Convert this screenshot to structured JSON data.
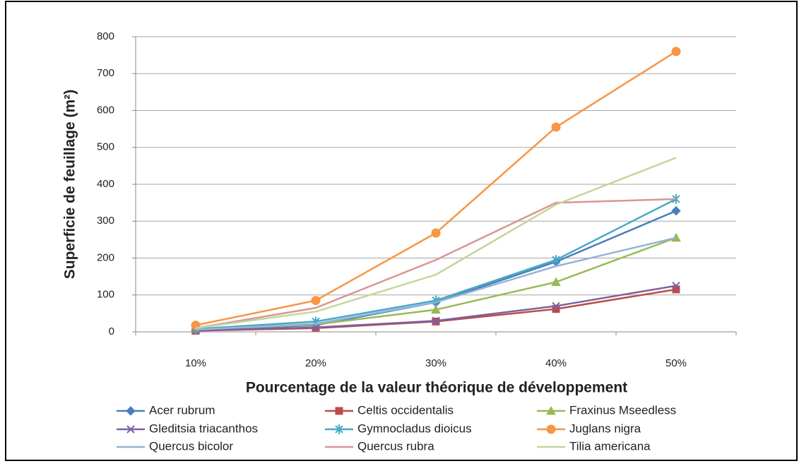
{
  "chart_data": {
    "type": "line",
    "x_label": "Pourcentage de la valeur théorique de développement",
    "y_label": "Superficie de feuillage (m²)",
    "categories": [
      "10%",
      "20%",
      "30%",
      "40%",
      "50%"
    ],
    "ylim": [
      0,
      800
    ],
    "yticks": [
      0,
      100,
      200,
      300,
      400,
      500,
      600,
      700,
      800
    ],
    "grid": true,
    "legend": "bottom",
    "series": [
      {
        "name": "Acer rubrum",
        "color": "#4a7ebb",
        "marker": "diamond",
        "values": [
          5,
          18,
          80,
          190,
          328
        ]
      },
      {
        "name": "Celtis occidentalis",
        "color": "#be4b48",
        "marker": "square",
        "values": [
          3,
          10,
          28,
          62,
          115
        ]
      },
      {
        "name": "Fraxinus Mseedless",
        "color": "#98b954",
        "marker": "triangle",
        "values": [
          6,
          20,
          60,
          135,
          255
        ]
      },
      {
        "name": "Gleditsia triacanthos",
        "color": "#7d60a0",
        "marker": "x",
        "values": [
          4,
          12,
          30,
          70,
          125
        ]
      },
      {
        "name": "Gymnocladus dioicus",
        "color": "#46aac5",
        "marker": "star",
        "values": [
          8,
          28,
          85,
          195,
          360
        ]
      },
      {
        "name": "Juglans nigra",
        "color": "#f79646",
        "marker": "circle",
        "values": [
          18,
          85,
          268,
          555,
          760
        ]
      },
      {
        "name": "Quercus bicolor",
        "color": "#95b3d7",
        "marker": "none",
        "values": [
          6,
          22,
          80,
          178,
          255
        ]
      },
      {
        "name": "Quercus rubra",
        "color": "#d99694",
        "marker": "none",
        "values": [
          10,
          65,
          195,
          350,
          360
        ]
      },
      {
        "name": "Tilia americana",
        "color": "#c3d69b",
        "marker": "none",
        "values": [
          10,
          55,
          155,
          345,
          472
        ]
      }
    ]
  }
}
